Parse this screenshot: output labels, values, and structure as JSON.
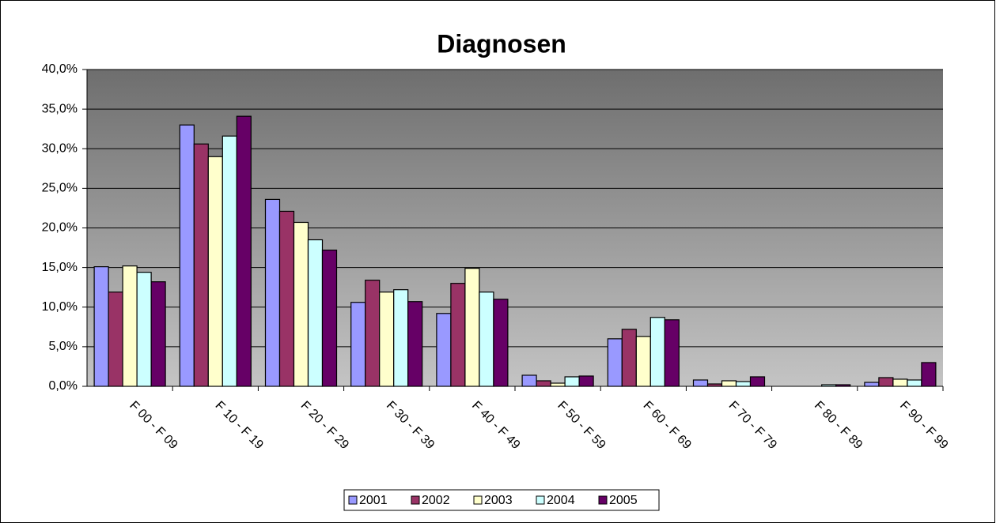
{
  "chart_data": {
    "type": "bar",
    "title": "Diagnosen",
    "categories": [
      "F 00 - F 09",
      "F 10 - F 19",
      "F 20 - F 29",
      "F 30 - F 39",
      "F 40 - F 49",
      "F 50 - F 59",
      "F 60 - F 69",
      "F 70 - F 79",
      "F 80 - F 89",
      "F 90 - F 99"
    ],
    "series": [
      {
        "name": "2001",
        "color": "#9999ff",
        "values": [
          15.1,
          33.0,
          23.6,
          10.6,
          9.2,
          1.4,
          6.0,
          0.8,
          0,
          0.5
        ]
      },
      {
        "name": "2002",
        "color": "#993366",
        "values": [
          11.9,
          30.6,
          22.1,
          13.4,
          13.0,
          0.7,
          7.2,
          0.3,
          0,
          1.1
        ]
      },
      {
        "name": "2003",
        "color": "#ffffcc",
        "values": [
          15.2,
          29.0,
          20.7,
          11.9,
          14.9,
          0.4,
          6.3,
          0.7,
          0,
          0.9
        ]
      },
      {
        "name": "2004",
        "color": "#ccffff",
        "values": [
          14.4,
          31.6,
          18.5,
          12.2,
          11.9,
          1.2,
          8.7,
          0.6,
          0.2,
          0.8
        ]
      },
      {
        "name": "2005",
        "color": "#660066",
        "values": [
          13.2,
          34.1,
          17.2,
          10.7,
          11.0,
          1.3,
          8.4,
          1.2,
          0.2,
          3.0
        ]
      }
    ],
    "ylim": [
      0,
      40
    ],
    "yticks": [
      {
        "value": 0,
        "label": "0,0%"
      },
      {
        "value": 5,
        "label": "5,0%"
      },
      {
        "value": 10,
        "label": "10,0%"
      },
      {
        "value": 15,
        "label": "15,0%"
      },
      {
        "value": 20,
        "label": "20,0%"
      },
      {
        "value": 25,
        "label": "25,0%"
      },
      {
        "value": 30,
        "label": "30,0%"
      },
      {
        "value": 35,
        "label": "35,0%"
      },
      {
        "value": 40,
        "label": "40,0%"
      }
    ],
    "grid": true,
    "legend": "bottom"
  }
}
